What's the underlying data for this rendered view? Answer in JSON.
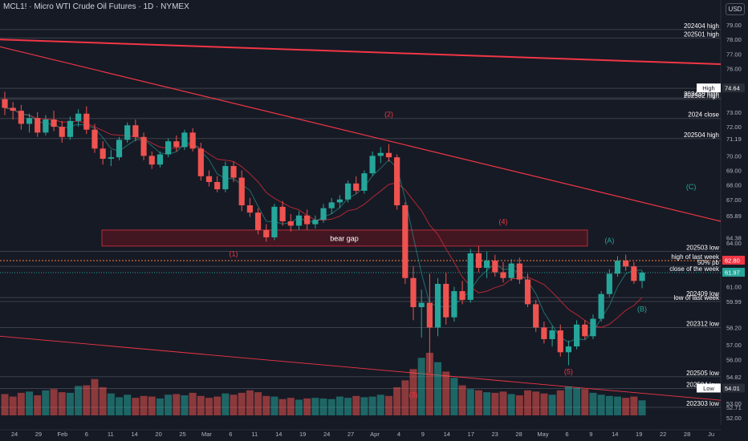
{
  "header": {
    "symbol": "MCL1!",
    "instrument": "Micro WTI Crude Oil Futures",
    "interval": "1D",
    "exchange": "NYMEX",
    "currency": "USD"
  },
  "chart_data": {
    "type": "candlestick",
    "ylim": [
      51.5,
      79.5
    ],
    "price_axis_ticks": [
      79.0,
      78.0,
      77.0,
      76.0,
      74.7,
      73.0,
      72.0,
      71.19,
      70.0,
      69.0,
      68.0,
      67.0,
      65.89,
      64.38,
      64.0,
      61.0,
      59.99,
      58.2,
      57.0,
      56.0,
      54.82,
      54.01,
      53.0,
      52.71,
      52.0
    ],
    "time_axis_labels": [
      "24",
      "29",
      "Feb",
      "6",
      "11",
      "14",
      "20",
      "25",
      "Mar",
      "6",
      "11",
      "14",
      "19",
      "24",
      "27",
      "Apr",
      "4",
      "9",
      "14",
      "17",
      "23",
      "28",
      "May",
      "6",
      "9",
      "14",
      "19",
      "22",
      "28",
      "Ju"
    ],
    "horizontal_levels": [
      {
        "label": "202404 high",
        "price": 78.68,
        "price_tag": "78.68"
      },
      {
        "label": "202501 high",
        "price": 78.1,
        "price_tag": "78.10"
      },
      {
        "label": "High",
        "price": 74.64,
        "price_tag": "74.64",
        "highlight": true
      },
      {
        "label": "202410 high",
        "price": 73.98,
        "price_tag": "73.98"
      },
      {
        "label": "202502 high",
        "price": 73.89,
        "price_tag": "73.89"
      },
      {
        "label": "2024 close",
        "price": 72.57,
        "price_tag": "72.57"
      },
      {
        "label": "202504 high",
        "price": 71.19,
        "price_tag": ""
      },
      {
        "label": "202503 low",
        "price": 63.43,
        "price_tag": "63.43"
      },
      {
        "label": "high of last week",
        "price": 62.8,
        "price_tag": "",
        "dotted": true
      },
      {
        "label": "50% pb",
        "price": 62.4,
        "price_tag": ""
      },
      {
        "label": "close of the week",
        "price": 61.97,
        "price_tag": "61.97",
        "current": true
      },
      {
        "label": "202409 low",
        "price": 60.26,
        "price_tag": "60.26"
      },
      {
        "label": "low of last week",
        "price": 59.99,
        "price_tag": "59.99"
      },
      {
        "label": "202312 low",
        "price": 58.2,
        "price_tag": "58.20"
      },
      {
        "label": "202505 low",
        "price": 54.82,
        "price_tag": "54.82"
      },
      {
        "label": "Low",
        "price": 54.01,
        "price_tag": "54.01",
        "highlight": true
      },
      {
        "label": "202504 low",
        "price": 54.01,
        "price_tag": ""
      },
      {
        "label": "202303 low",
        "price": 52.71,
        "price_tag": "52.71"
      }
    ],
    "zone": {
      "label": "bear gap",
      "from_price": 63.8,
      "to_price": 64.9
    },
    "wave_labels": [
      "(1)",
      "(2)",
      "(3)",
      "(4)",
      "(5)",
      "(A)",
      "(B)",
      "(C)"
    ],
    "price_tags": {
      "high": "74.64",
      "low": "54.01",
      "last": "61.97",
      "cursor": "62.80"
    },
    "colors": {
      "bull": "#26a69a",
      "bear": "#ef5350",
      "background": "#161a25",
      "trendline": "#f23645",
      "current_price": "#26a69a"
    },
    "candles": [
      [
        73.9,
        74.4,
        72.8,
        73.3
      ],
      [
        73.3,
        73.7,
        72.5,
        73.1
      ],
      [
        73.1,
        73.5,
        71.8,
        72.2
      ],
      [
        72.2,
        72.9,
        71.6,
        72.6
      ],
      [
        72.6,
        73.0,
        71.3,
        71.6
      ],
      [
        71.6,
        72.8,
        71.4,
        72.5
      ],
      [
        72.5,
        73.1,
        71.7,
        72.0
      ],
      [
        72.0,
        72.4,
        70.9,
        71.3
      ],
      [
        71.3,
        72.7,
        71.1,
        72.4
      ],
      [
        72.4,
        73.2,
        72.0,
        72.9
      ],
      [
        72.9,
        73.4,
        71.5,
        71.8
      ],
      [
        71.8,
        72.2,
        70.2,
        70.5
      ],
      [
        70.5,
        71.0,
        69.4,
        69.8
      ],
      [
        69.8,
        70.4,
        69.3,
        69.9
      ],
      [
        69.9,
        71.3,
        69.7,
        71.1
      ],
      [
        71.1,
        72.3,
        70.9,
        72.1
      ],
      [
        72.1,
        72.5,
        71.0,
        71.3
      ],
      [
        71.3,
        71.6,
        69.7,
        70.0
      ],
      [
        70.0,
        70.3,
        69.1,
        69.4
      ],
      [
        69.4,
        70.3,
        69.2,
        70.1
      ],
      [
        70.1,
        71.2,
        69.9,
        71.0
      ],
      [
        71.0,
        71.4,
        70.3,
        70.6
      ],
      [
        70.6,
        71.8,
        70.4,
        71.6
      ],
      [
        71.6,
        71.9,
        70.3,
        70.5
      ],
      [
        70.5,
        70.9,
        68.3,
        68.6
      ],
      [
        68.6,
        69.0,
        67.9,
        68.2
      ],
      [
        68.2,
        68.6,
        67.5,
        67.7
      ],
      [
        67.7,
        69.6,
        67.5,
        69.3
      ],
      [
        69.3,
        69.6,
        68.2,
        68.5
      ],
      [
        68.5,
        69.0,
        66.2,
        66.6
      ],
      [
        66.6,
        67.1,
        65.8,
        66.1
      ],
      [
        66.1,
        66.4,
        64.6,
        64.9
      ],
      [
        64.9,
        65.3,
        64.1,
        64.4
      ],
      [
        64.4,
        66.7,
        64.2,
        66.5
      ],
      [
        66.5,
        66.9,
        65.2,
        65.5
      ],
      [
        65.5,
        66.0,
        64.8,
        65.2
      ],
      [
        65.2,
        66.2,
        64.9,
        65.9
      ],
      [
        65.9,
        66.3,
        64.9,
        65.3
      ],
      [
        65.3,
        65.9,
        65.0,
        65.6
      ],
      [
        65.6,
        66.7,
        65.4,
        66.4
      ],
      [
        66.4,
        67.1,
        66.0,
        66.8
      ],
      [
        66.8,
        67.3,
        66.4,
        67.0
      ],
      [
        67.0,
        68.3,
        66.8,
        68.1
      ],
      [
        68.1,
        68.6,
        67.4,
        67.6
      ],
      [
        67.6,
        69.0,
        67.4,
        68.8
      ],
      [
        68.8,
        70.3,
        68.6,
        70.0
      ],
      [
        70.0,
        70.6,
        69.5,
        70.2
      ],
      [
        70.2,
        70.8,
        69.6,
        69.9
      ],
      [
        69.9,
        70.1,
        66.3,
        66.6
      ],
      [
        66.6,
        66.8,
        61.2,
        61.6
      ],
      [
        61.6,
        62.4,
        58.7,
        59.6
      ],
      [
        59.6,
        60.8,
        57.5,
        59.9
      ],
      [
        59.9,
        61.9,
        55.1,
        58.2
      ],
      [
        58.2,
        61.6,
        57.6,
        61.2
      ],
      [
        61.2,
        62.0,
        58.4,
        58.9
      ],
      [
        58.9,
        61.0,
        58.6,
        60.7
      ],
      [
        60.7,
        61.4,
        59.8,
        60.1
      ],
      [
        60.1,
        63.6,
        59.9,
        63.3
      ],
      [
        63.3,
        63.8,
        62.0,
        62.3
      ],
      [
        62.3,
        63.4,
        61.6,
        62.8
      ],
      [
        62.8,
        63.2,
        61.7,
        62.0
      ],
      [
        62.0,
        62.7,
        61.3,
        61.6
      ],
      [
        61.6,
        62.9,
        61.4,
        62.6
      ],
      [
        62.6,
        63.0,
        61.2,
        61.5
      ],
      [
        61.5,
        61.9,
        59.6,
        59.8
      ],
      [
        59.8,
        60.1,
        57.9,
        58.2
      ],
      [
        58.2,
        58.6,
        57.1,
        57.4
      ],
      [
        57.4,
        58.3,
        56.9,
        58.0
      ],
      [
        58.0,
        58.4,
        56.2,
        56.5
      ],
      [
        56.5,
        57.3,
        55.6,
        56.9
      ],
      [
        56.9,
        58.7,
        56.7,
        58.4
      ],
      [
        58.4,
        58.7,
        57.4,
        57.6
      ],
      [
        57.6,
        59.1,
        57.4,
        58.8
      ],
      [
        58.8,
        60.7,
        58.6,
        60.5
      ],
      [
        60.5,
        62.2,
        60.3,
        61.9
      ],
      [
        61.9,
        63.1,
        61.7,
        62.8
      ],
      [
        62.8,
        63.2,
        62.1,
        62.4
      ],
      [
        62.4,
        62.7,
        61.2,
        61.4
      ],
      [
        61.4,
        62.1,
        60.9,
        61.97
      ]
    ],
    "volumes": [
      0.34,
      0.3,
      0.36,
      0.38,
      0.32,
      0.4,
      0.42,
      0.37,
      0.36,
      0.47,
      0.48,
      0.58,
      0.45,
      0.35,
      0.29,
      0.33,
      0.28,
      0.31,
      0.3,
      0.27,
      0.33,
      0.34,
      0.32,
      0.36,
      0.31,
      0.28,
      0.3,
      0.35,
      0.33,
      0.36,
      0.4,
      0.37,
      0.31,
      0.3,
      0.26,
      0.28,
      0.25,
      0.27,
      0.28,
      0.27,
      0.26,
      0.3,
      0.28,
      0.31,
      0.29,
      0.3,
      0.33,
      0.31,
      0.45,
      0.56,
      0.74,
      0.92,
      1.0,
      0.85,
      0.7,
      0.6,
      0.48,
      0.42,
      0.4,
      0.37,
      0.36,
      0.38,
      0.34,
      0.32,
      0.4,
      0.38,
      0.35,
      0.33,
      0.4,
      0.46,
      0.44,
      0.42,
      0.36,
      0.33,
      0.31,
      0.3,
      0.28,
      0.3,
      0.24
    ]
  }
}
